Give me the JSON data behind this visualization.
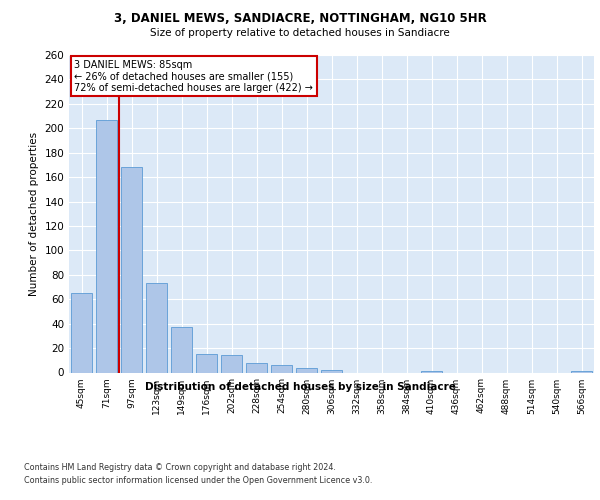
{
  "title1": "3, DANIEL MEWS, SANDIACRE, NOTTINGHAM, NG10 5HR",
  "title2": "Size of property relative to detached houses in Sandiacre",
  "xlabel": "Distribution of detached houses by size in Sandiacre",
  "ylabel": "Number of detached properties",
  "bar_categories": [
    "45sqm",
    "71sqm",
    "97sqm",
    "123sqm",
    "149sqm",
    "176sqm",
    "202sqm",
    "228sqm",
    "254sqm",
    "280sqm",
    "306sqm",
    "332sqm",
    "358sqm",
    "384sqm",
    "410sqm",
    "436sqm",
    "462sqm",
    "488sqm",
    "514sqm",
    "540sqm",
    "566sqm"
  ],
  "bar_values": [
    65,
    207,
    168,
    73,
    37,
    15,
    14,
    8,
    6,
    4,
    2,
    0,
    0,
    0,
    1,
    0,
    0,
    0,
    0,
    0,
    1
  ],
  "bar_color": "#aec6e8",
  "bar_edge_color": "#5b9bd5",
  "property_line_x": 1.5,
  "property_line_label": "3 DANIEL MEWS: 85sqm",
  "annotation_line1": "← 26% of detached houses are smaller (155)",
  "annotation_line2": "72% of semi-detached houses are larger (422) →",
  "annotation_box_color": "#ffffff",
  "annotation_box_edge": "#cc0000",
  "line_color": "#cc0000",
  "ylim": [
    0,
    260
  ],
  "yticks": [
    0,
    20,
    40,
    60,
    80,
    100,
    120,
    140,
    160,
    180,
    200,
    220,
    240,
    260
  ],
  "footnote1": "Contains HM Land Registry data © Crown copyright and database right 2024.",
  "footnote2": "Contains public sector information licensed under the Open Government Licence v3.0.",
  "background_color": "#dce9f7",
  "grid_color": "#ffffff"
}
